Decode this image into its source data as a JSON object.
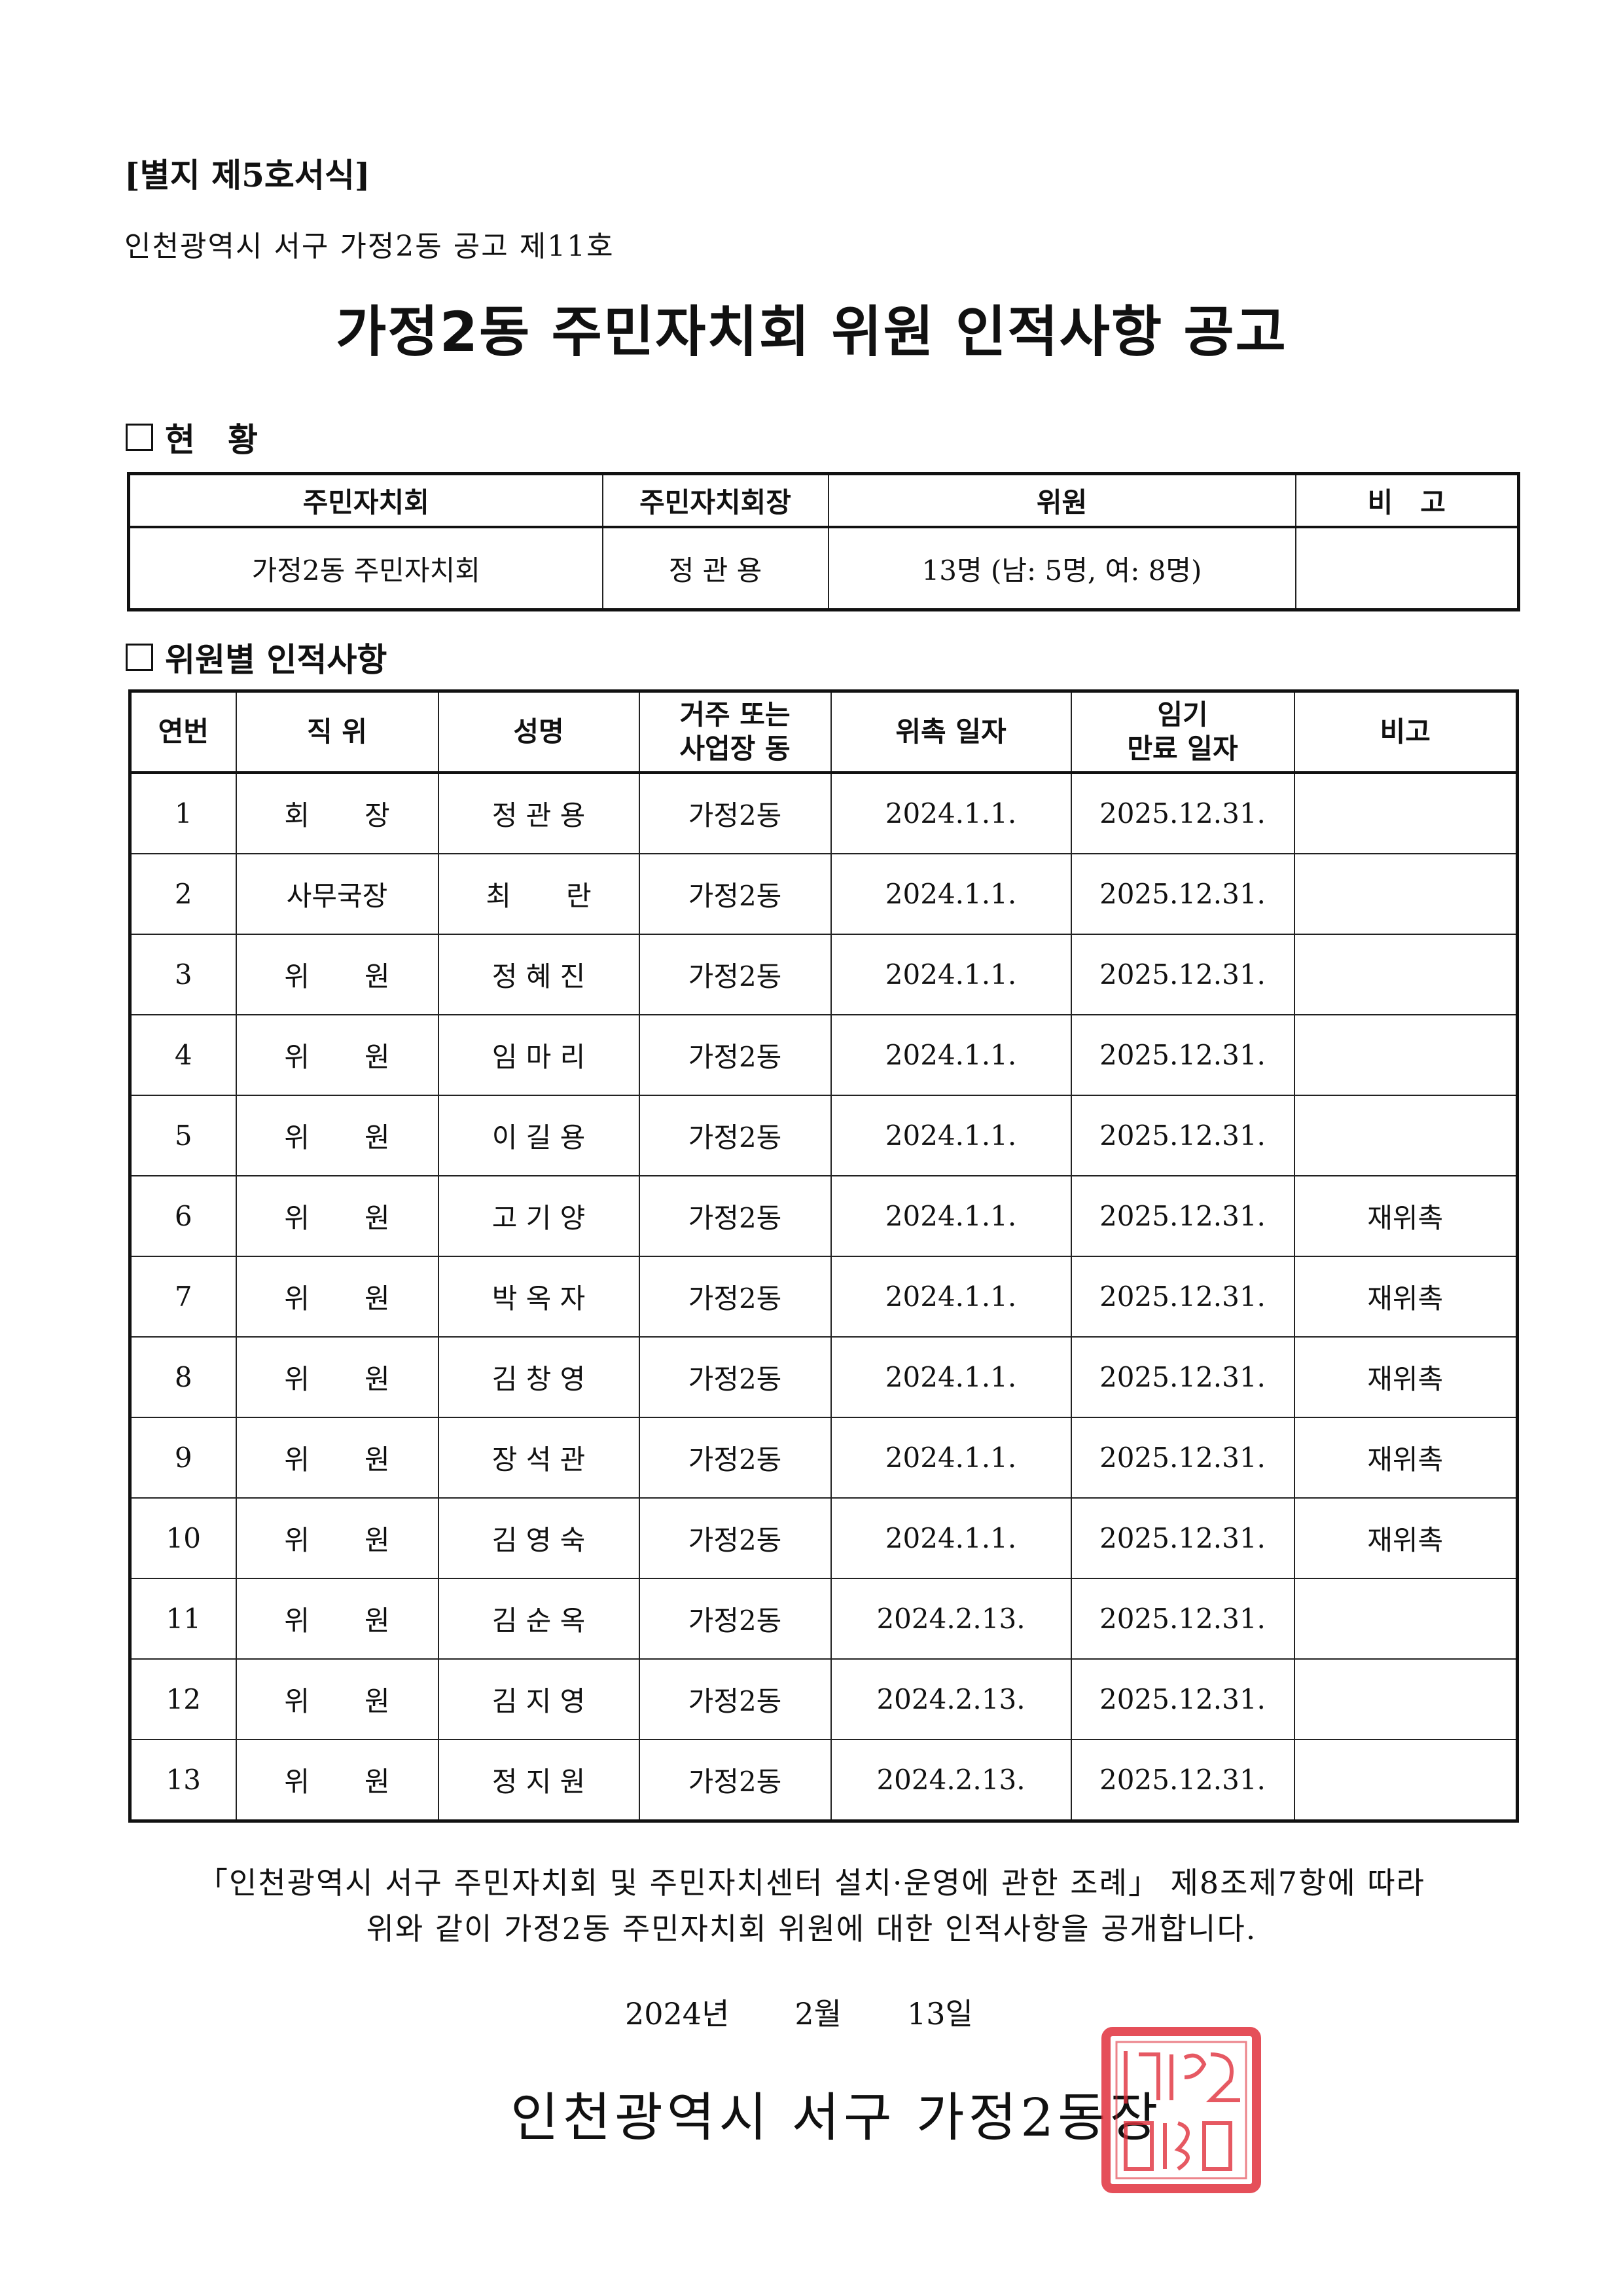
{
  "form_label": "[별지 제5호서식]",
  "notice_number": "인천광역시 서구 가정2동 공고 제11호",
  "title": "가정2동 주민자치회 위원 인적사항 공고",
  "section_status": {
    "heading": "현　황",
    "columns": [
      "주민자치회",
      "주민자치회장",
      "위원",
      "비　고"
    ],
    "row": [
      "가정2동 주민자치회",
      "정 관 용",
      "13명 (남: 5명, 여: 8명)",
      ""
    ]
  },
  "section_members": {
    "heading": "위원별 인적사항",
    "columns": [
      "연번",
      "직 위",
      "성명",
      "거주 또는\n사업장 동",
      "위촉 일자",
      "임기\n만료 일자",
      "비고"
    ],
    "rows": [
      [
        "1",
        "회　　장",
        "정 관 용",
        "가정2동",
        "2024.1.1.",
        "2025.12.31.",
        ""
      ],
      [
        "2",
        "사무국장",
        "최　　란",
        "가정2동",
        "2024.1.1.",
        "2025.12.31.",
        ""
      ],
      [
        "3",
        "위　　원",
        "정 혜 진",
        "가정2동",
        "2024.1.1.",
        "2025.12.31.",
        ""
      ],
      [
        "4",
        "위　　원",
        "임 마 리",
        "가정2동",
        "2024.1.1.",
        "2025.12.31.",
        ""
      ],
      [
        "5",
        "위　　원",
        "이 길 용",
        "가정2동",
        "2024.1.1.",
        "2025.12.31.",
        ""
      ],
      [
        "6",
        "위　　원",
        "고 기 양",
        "가정2동",
        "2024.1.1.",
        "2025.12.31.",
        "재위촉"
      ],
      [
        "7",
        "위　　원",
        "박 옥 자",
        "가정2동",
        "2024.1.1.",
        "2025.12.31.",
        "재위촉"
      ],
      [
        "8",
        "위　　원",
        "김 창 영",
        "가정2동",
        "2024.1.1.",
        "2025.12.31.",
        "재위촉"
      ],
      [
        "9",
        "위　　원",
        "장 석 관",
        "가정2동",
        "2024.1.1.",
        "2025.12.31.",
        "재위촉"
      ],
      [
        "10",
        "위　　원",
        "김 영 숙",
        "가정2동",
        "2024.1.1.",
        "2025.12.31.",
        "재위촉"
      ],
      [
        "11",
        "위　　원",
        "김 순 옥",
        "가정2동",
        "2024.2.13.",
        "2025.12.31.",
        ""
      ],
      [
        "12",
        "위　　원",
        "김 지 영",
        "가정2동",
        "2024.2.13.",
        "2025.12.31.",
        ""
      ],
      [
        "13",
        "위　　원",
        "정 지 원",
        "가정2동",
        "2024.2.13.",
        "2025.12.31.",
        ""
      ]
    ]
  },
  "paragraph": {
    "line1": "「인천광역시 서구 주민자치회 및 주민자치센터 설치·운영에 관한 조례」 제8조제7항에 따라",
    "line2": "위와 같이 가정2동 주민자치회 위원에 대한 인적사항을 공개합니다."
  },
  "date": {
    "year": "2024년",
    "month": "2월",
    "day": "13일"
  },
  "signature": "인천광역시 서구 가정2동장",
  "stamp": {
    "icon": "official-seal-icon",
    "color": "#e0303c"
  }
}
